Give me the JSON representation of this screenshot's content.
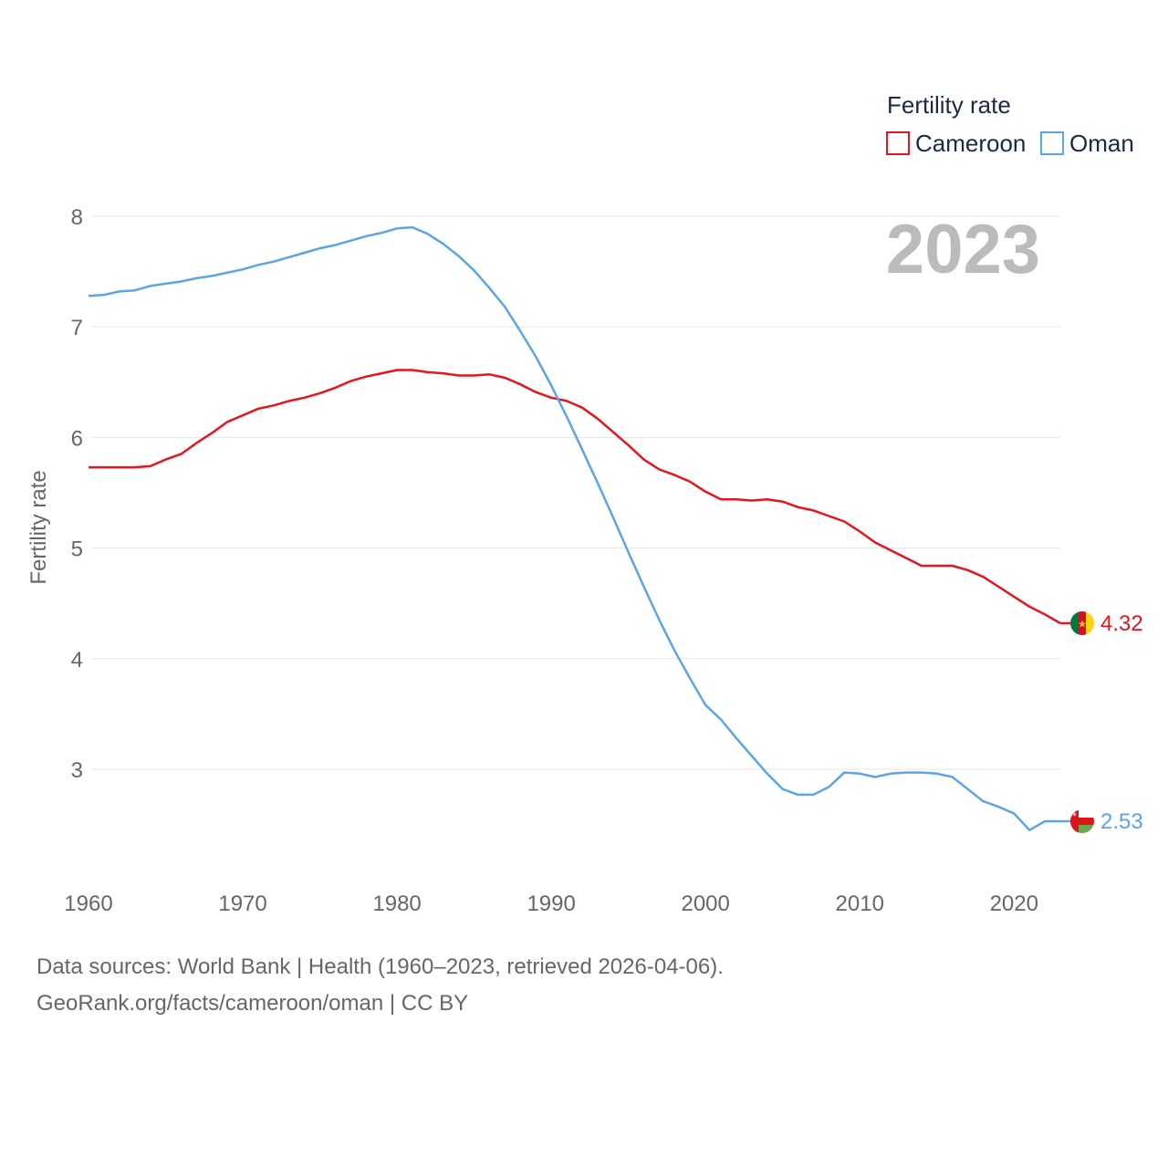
{
  "chart_data": {
    "type": "line",
    "title": "",
    "year_stamp": "2023",
    "ylabel": "Fertility rate",
    "xlabel": "",
    "xlim": [
      1960,
      2023
    ],
    "ylim": [
      2.0,
      8.2
    ],
    "x_ticks": [
      1960,
      1970,
      1980,
      1990,
      2000,
      2010,
      2020
    ],
    "y_ticks": [
      3,
      4,
      5,
      6,
      7,
      8
    ],
    "grid": true,
    "legend": {
      "title": "Fertility rate",
      "position": "top-right"
    },
    "x": [
      1960,
      1961,
      1962,
      1963,
      1964,
      1965,
      1966,
      1967,
      1968,
      1969,
      1970,
      1971,
      1972,
      1973,
      1974,
      1975,
      1976,
      1977,
      1978,
      1979,
      1980,
      1981,
      1982,
      1983,
      1984,
      1985,
      1986,
      1987,
      1988,
      1989,
      1990,
      1991,
      1992,
      1993,
      1994,
      1995,
      1996,
      1997,
      1998,
      1999,
      2000,
      2001,
      2002,
      2003,
      2004,
      2005,
      2006,
      2007,
      2008,
      2009,
      2010,
      2011,
      2012,
      2013,
      2014,
      2015,
      2016,
      2017,
      2018,
      2019,
      2020,
      2021,
      2022,
      2023
    ],
    "series": [
      {
        "name": "Cameroon",
        "color": "#e8141b",
        "end_label": "4.32",
        "flag": "cameroon-flag",
        "values": [
          5.73,
          5.73,
          5.73,
          5.73,
          5.74,
          5.8,
          5.85,
          5.95,
          6.04,
          6.14,
          6.2,
          6.26,
          6.29,
          6.33,
          6.36,
          6.4,
          6.45,
          6.51,
          6.55,
          6.58,
          6.61,
          6.61,
          6.59,
          6.58,
          6.56,
          6.56,
          6.57,
          6.54,
          6.48,
          6.41,
          6.36,
          6.33,
          6.27,
          6.17,
          6.05,
          5.93,
          5.8,
          5.71,
          5.66,
          5.6,
          5.51,
          5.44,
          5.44,
          5.43,
          5.44,
          5.42,
          5.37,
          5.34,
          5.29,
          5.24,
          5.15,
          5.05,
          4.98,
          4.91,
          4.84,
          4.84,
          4.84,
          4.8,
          4.74,
          4.65,
          4.56,
          4.47,
          4.4,
          4.32
        ]
      },
      {
        "name": "Oman",
        "color": "#5ba4e6",
        "end_label": "2.53",
        "flag": "oman-flag",
        "values": [
          7.28,
          7.29,
          7.32,
          7.33,
          7.37,
          7.39,
          7.41,
          7.44,
          7.46,
          7.49,
          7.52,
          7.56,
          7.59,
          7.63,
          7.67,
          7.71,
          7.74,
          7.78,
          7.82,
          7.85,
          7.89,
          7.9,
          7.84,
          7.75,
          7.64,
          7.51,
          7.35,
          7.18,
          6.96,
          6.73,
          6.47,
          6.19,
          5.89,
          5.59,
          5.28,
          4.96,
          4.65,
          4.35,
          4.07,
          3.82,
          3.58,
          3.45,
          3.28,
          3.12,
          2.96,
          2.82,
          2.77,
          2.77,
          2.84,
          2.97,
          2.96,
          2.93,
          2.96,
          2.97,
          2.97,
          2.96,
          2.93,
          2.82,
          2.71,
          2.66,
          2.6,
          2.45,
          2.53,
          2.53
        ]
      }
    ]
  },
  "footer": {
    "line1": "Data sources: World Bank | Health (1960–2023, retrieved 2026-04-06).",
    "line2": "GeoRank.org/facts/cameroon/oman | CC BY"
  }
}
